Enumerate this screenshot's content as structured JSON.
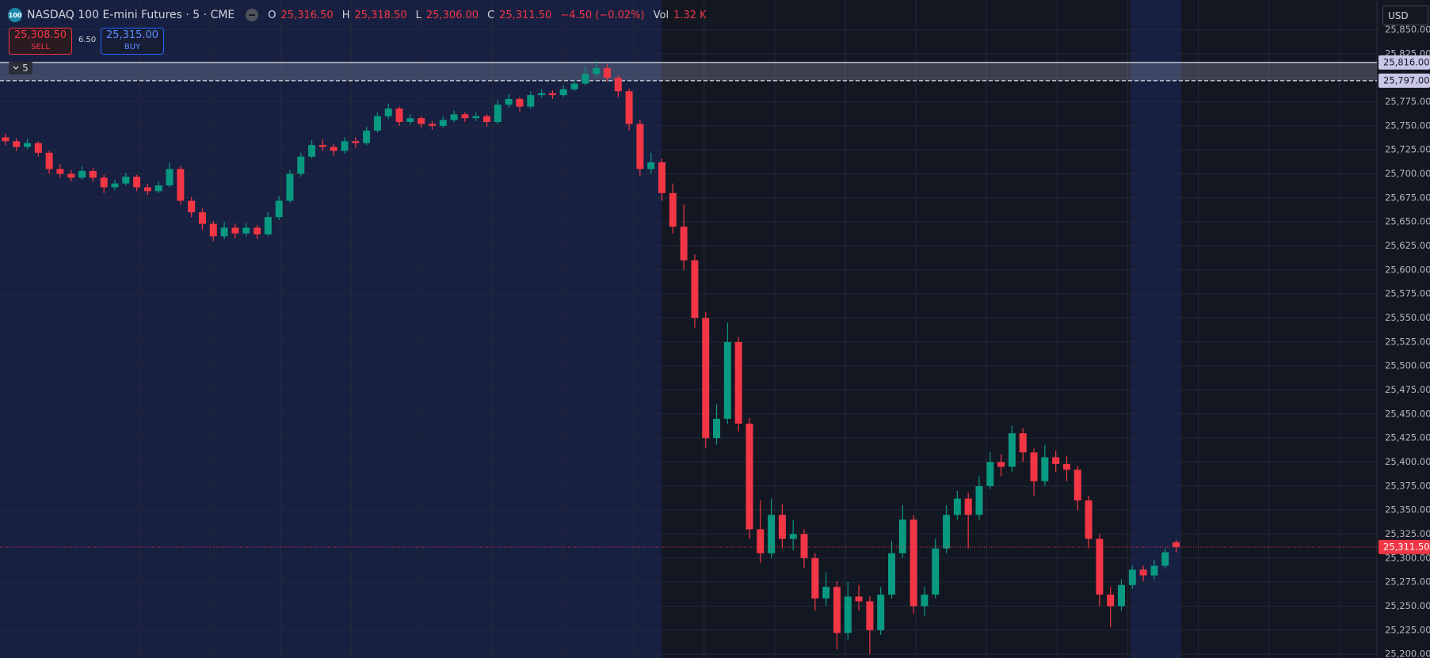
{
  "header": {
    "badge": "100",
    "symbol": "NASDAQ 100 E-mini Futures · 5 · CME",
    "ohlc": [
      {
        "label": "O",
        "value": "25,316.50"
      },
      {
        "label": "H",
        "value": "25,318.50"
      },
      {
        "label": "L",
        "value": "25,306.00"
      },
      {
        "label": "C",
        "value": "25,311.50"
      }
    ],
    "change": "−4.50 (−0.02%)",
    "vol_label": "Vol",
    "vol": "1.32 K"
  },
  "trade": {
    "sell_price": "25,308.50",
    "sell": "SELL",
    "spread": "6.50",
    "buy_price": "25,315.00",
    "buy": "BUY"
  },
  "chart_data": {
    "type": "candlestick",
    "currency": "USD",
    "group_label": "5",
    "up_color": "#089981",
    "down_color": "#f23645",
    "grid": true,
    "ylim": [
      25196,
      25881
    ],
    "yticks": [
      {
        "value": 25200,
        "label": "25,200.00"
      },
      {
        "value": 25225,
        "label": "25,225.00"
      },
      {
        "value": 25250,
        "label": "25,250.00"
      },
      {
        "value": 25275,
        "label": "25,275.00"
      },
      {
        "value": 25300,
        "label": "25,300.00"
      },
      {
        "value": 25325,
        "label": "25,325.00"
      },
      {
        "value": 25350,
        "label": "25,350.00"
      },
      {
        "value": 25375,
        "label": "25,375.00"
      },
      {
        "value": 25400,
        "label": "25,400.00"
      },
      {
        "value": 25425,
        "label": "25,425.00"
      },
      {
        "value": 25450,
        "label": "25,450.00"
      },
      {
        "value": 25475,
        "label": "25,475.00"
      },
      {
        "value": 25500,
        "label": "25,500.00"
      },
      {
        "value": 25525,
        "label": "25,525.00"
      },
      {
        "value": 25550,
        "label": "25,550.00"
      },
      {
        "value": 25575,
        "label": "25,575.00"
      },
      {
        "value": 25600,
        "label": "25,600.00"
      },
      {
        "value": 25625,
        "label": "25,625.00"
      },
      {
        "value": 25650,
        "label": "25,650.00"
      },
      {
        "value": 25675,
        "label": "25,675.00"
      },
      {
        "value": 25700,
        "label": "25,700.00"
      },
      {
        "value": 25725,
        "label": "25,725.00"
      },
      {
        "value": 25750,
        "label": "25,750.00"
      },
      {
        "value": 25775,
        "label": "25,775.00"
      },
      {
        "value": 25800,
        "label": "25,800.00"
      },
      {
        "value": 25825,
        "label": "25,825.00"
      },
      {
        "value": 25850,
        "label": "25,850.00"
      }
    ],
    "hlines": [
      {
        "value": 25816,
        "label": "25,816.00"
      },
      {
        "value": 25797,
        "label": "25,797.00"
      }
    ],
    "last_price": {
      "value": 25311.5,
      "label": "25,311.50"
    },
    "candles": [
      [
        25738,
        25742,
        25730,
        25734
      ],
      [
        25734,
        25737,
        25724,
        25728
      ],
      [
        25728,
        25736,
        25726,
        25732
      ],
      [
        25732,
        25734,
        25718,
        25722
      ],
      [
        25722,
        25724,
        25700,
        25705
      ],
      [
        25705,
        25710,
        25696,
        25700
      ],
      [
        25700,
        25704,
        25692,
        25696
      ],
      [
        25696,
        25708,
        25694,
        25703
      ],
      [
        25703,
        25706,
        25692,
        25696
      ],
      [
        25696,
        25699,
        25680,
        25686
      ],
      [
        25686,
        25694,
        25683,
        25690
      ],
      [
        25690,
        25701,
        25688,
        25697
      ],
      [
        25697,
        25699,
        25682,
        25686
      ],
      [
        25686,
        25690,
        25678,
        25682
      ],
      [
        25682,
        25692,
        25680,
        25688
      ],
      [
        25688,
        25712,
        25686,
        25705
      ],
      [
        25705,
        25708,
        25668,
        25672
      ],
      [
        25672,
        25676,
        25655,
        25660
      ],
      [
        25660,
        25664,
        25642,
        25648
      ],
      [
        25648,
        25651,
        25630,
        25635
      ],
      [
        25635,
        25650,
        25632,
        25644
      ],
      [
        25644,
        25648,
        25633,
        25638
      ],
      [
        25638,
        25649,
        25635,
        25644
      ],
      [
        25644,
        25647,
        25632,
        25637
      ],
      [
        25637,
        25660,
        25635,
        25655
      ],
      [
        25655,
        25677,
        25652,
        25672
      ],
      [
        25672,
        25704,
        25670,
        25700
      ],
      [
        25700,
        25722,
        25697,
        25718
      ],
      [
        25718,
        25735,
        25716,
        25730
      ],
      [
        25730,
        25736,
        25724,
        25728
      ],
      [
        25728,
        25731,
        25719,
        25724
      ],
      [
        25724,
        25738,
        25721,
        25734
      ],
      [
        25734,
        25738,
        25727,
        25732
      ],
      [
        25732,
        25749,
        25730,
        25745
      ],
      [
        25745,
        25764,
        25743,
        25760
      ],
      [
        25760,
        25773,
        25757,
        25768
      ],
      [
        25768,
        25770,
        25750,
        25754
      ],
      [
        25754,
        25762,
        25751,
        25758
      ],
      [
        25758,
        25760,
        25748,
        25752
      ],
      [
        25752,
        25755,
        25746,
        25750
      ],
      [
        25750,
        25760,
        25748,
        25756
      ],
      [
        25756,
        25766,
        25754,
        25762
      ],
      [
        25762,
        25764,
        25754,
        25758
      ],
      [
        25758,
        25764,
        25755,
        25760
      ],
      [
        25760,
        25762,
        25749,
        25754
      ],
      [
        25754,
        25777,
        25752,
        25772
      ],
      [
        25772,
        25783,
        25769,
        25778
      ],
      [
        25778,
        25780,
        25765,
        25770
      ],
      [
        25770,
        25786,
        25768,
        25782
      ],
      [
        25782,
        25788,
        25779,
        25784
      ],
      [
        25784,
        25787,
        25778,
        25782
      ],
      [
        25782,
        25792,
        25780,
        25788
      ],
      [
        25788,
        25798,
        25786,
        25794
      ],
      [
        25794,
        25812,
        25792,
        25804
      ],
      [
        25804,
        25818,
        25801,
        25810
      ],
      [
        25810,
        25814,
        25796,
        25800
      ],
      [
        25800,
        25803,
        25780,
        25786
      ],
      [
        25786,
        25789,
        25745,
        25752
      ],
      [
        25752,
        25756,
        25698,
        25705
      ],
      [
        25705,
        25722,
        25700,
        25712
      ],
      [
        25712,
        25716,
        25672,
        25680
      ],
      [
        25680,
        25690,
        25638,
        25645
      ],
      [
        25645,
        25668,
        25600,
        25610
      ],
      [
        25610,
        25616,
        25540,
        25550
      ],
      [
        25550,
        25556,
        25415,
        25425
      ],
      [
        25425,
        25460,
        25418,
        25445
      ],
      [
        25445,
        25545,
        25440,
        25525
      ],
      [
        25525,
        25530,
        25432,
        25440
      ],
      [
        25440,
        25446,
        25320,
        25330
      ],
      [
        25330,
        25360,
        25295,
        25305
      ],
      [
        25305,
        25362,
        25300,
        25345
      ],
      [
        25345,
        25356,
        25310,
        25320
      ],
      [
        25320,
        25340,
        25308,
        25325
      ],
      [
        25325,
        25330,
        25290,
        25300
      ],
      [
        25300,
        25305,
        25245,
        25258
      ],
      [
        25258,
        25285,
        25250,
        25270
      ],
      [
        25270,
        25276,
        25205,
        25222
      ],
      [
        25222,
        25275,
        25215,
        25260
      ],
      [
        25260,
        25272,
        25245,
        25255
      ],
      [
        25255,
        25260,
        25200,
        25225
      ],
      [
        25225,
        25270,
        25220,
        25262
      ],
      [
        25262,
        25318,
        25258,
        25305
      ],
      [
        25305,
        25355,
        25300,
        25340
      ],
      [
        25340,
        25345,
        25242,
        25250
      ],
      [
        25250,
        25270,
        25240,
        25262
      ],
      [
        25262,
        25320,
        25258,
        25310
      ],
      [
        25310,
        25355,
        25305,
        25345
      ],
      [
        25345,
        25370,
        25340,
        25362
      ],
      [
        25362,
        25368,
        25310,
        25345
      ],
      [
        25345,
        25385,
        25340,
        25375
      ],
      [
        25375,
        25410,
        25372,
        25400
      ],
      [
        25400,
        25408,
        25385,
        25395
      ],
      [
        25395,
        25438,
        25390,
        25430
      ],
      [
        25430,
        25435,
        25400,
        25410
      ],
      [
        25410,
        25414,
        25365,
        25380
      ],
      [
        25380,
        25418,
        25375,
        25405
      ],
      [
        25405,
        25412,
        25390,
        25398
      ],
      [
        25398,
        25406,
        25380,
        25392
      ],
      [
        25392,
        25396,
        25350,
        25360
      ],
      [
        25360,
        25365,
        25310,
        25320
      ],
      [
        25320,
        25325,
        25250,
        25262
      ],
      [
        25262,
        25270,
        25228,
        25250
      ],
      [
        25250,
        25278,
        25245,
        25272
      ],
      [
        25272,
        25292,
        25268,
        25288
      ],
      [
        25288,
        25292,
        25276,
        25282
      ],
      [
        25282,
        25298,
        25278,
        25292
      ],
      [
        25292,
        25310,
        25289,
        25306
      ],
      [
        25316.5,
        25318.5,
        25306,
        25311.5
      ]
    ]
  }
}
